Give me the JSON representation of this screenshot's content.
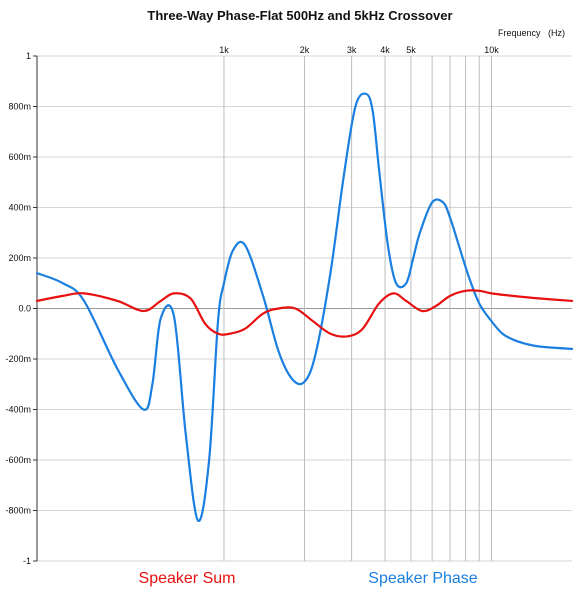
{
  "chart_data": {
    "type": "line",
    "title": "Three-Way Phase-Flat 500Hz and 5kHz Crossover",
    "xlabel": "Frequency   (Hz)",
    "ylabel": "",
    "x_scale": "log",
    "xlim": [
      200,
      20000
    ],
    "ylim": [
      -1,
      1
    ],
    "x_tick_labels": [
      {
        "value": 1000,
        "label": "1k"
      },
      {
        "value": 2000,
        "label": "2k"
      },
      {
        "value": 3000,
        "label": "3k"
      },
      {
        "value": 4000,
        "label": "4k"
      },
      {
        "value": 5000,
        "label": "5k"
      },
      {
        "value": 10000,
        "label": "10k"
      }
    ],
    "x_gridlines": [
      1000,
      2000,
      3000,
      4000,
      5000,
      6000,
      7000,
      8000,
      9000,
      10000
    ],
    "y_ticks": [
      {
        "value": 1,
        "label": "1"
      },
      {
        "value": 0.8,
        "label": "800m"
      },
      {
        "value": 0.6,
        "label": "600m"
      },
      {
        "value": 0.4,
        "label": "400m"
      },
      {
        "value": 0.2,
        "label": "200m"
      },
      {
        "value": 0,
        "label": "0.0"
      },
      {
        "value": -0.2,
        "label": "-200m"
      },
      {
        "value": -0.4,
        "label": "-400m"
      },
      {
        "value": -0.6,
        "label": "-600m"
      },
      {
        "value": -0.8,
        "label": "-800m"
      },
      {
        "value": -1,
        "label": "-1"
      }
    ],
    "grid": true,
    "legend_position": "bottom",
    "series": [
      {
        "name": "Speaker Sum",
        "color": "#e81010",
        "x": [
          200,
          250,
          300,
          400,
          500,
          580,
          650,
          750,
          850,
          950,
          1050,
          1200,
          1400,
          1600,
          1850,
          2150,
          2500,
          2900,
          3300,
          3800,
          4300,
          4800,
          5500,
          6200,
          7000,
          8000,
          9000,
          10000,
          12000,
          15000,
          20000
        ],
        "y": [
          0.03,
          0.05,
          0.06,
          0.03,
          -0.01,
          0.03,
          0.06,
          0.04,
          -0.06,
          -0.1,
          -0.1,
          -0.08,
          -0.02,
          0.0,
          0.0,
          -0.05,
          -0.1,
          -0.11,
          -0.08,
          0.02,
          0.06,
          0.03,
          -0.01,
          0.01,
          0.05,
          0.07,
          0.07,
          0.06,
          0.05,
          0.04,
          0.03
        ]
      },
      {
        "name": "Speaker Phase",
        "color": "#1a7fe0",
        "x": [
          200,
          250,
          300,
          400,
          500,
          540,
          580,
          650,
          720,
          800,
          880,
          950,
          1000,
          1080,
          1200,
          1400,
          1600,
          1800,
          2000,
          2200,
          2500,
          2800,
          3100,
          3400,
          3600,
          3800,
          4100,
          4400,
          4800,
          5100,
          5400,
          6000,
          6600,
          7000,
          7500,
          8200,
          9000,
          10000,
          11000,
          12500,
          15000,
          20000
        ],
        "y": [
          0.14,
          0.1,
          0.03,
          -0.24,
          -0.4,
          -0.3,
          -0.04,
          -0.03,
          -0.5,
          -0.84,
          -0.6,
          -0.05,
          0.1,
          0.23,
          0.25,
          0.05,
          -0.17,
          -0.28,
          -0.29,
          -0.18,
          0.14,
          0.52,
          0.8,
          0.85,
          0.78,
          0.55,
          0.25,
          0.1,
          0.1,
          0.2,
          0.3,
          0.42,
          0.42,
          0.36,
          0.26,
          0.13,
          0.02,
          -0.05,
          -0.1,
          -0.13,
          -0.15,
          -0.16
        ]
      }
    ]
  }
}
